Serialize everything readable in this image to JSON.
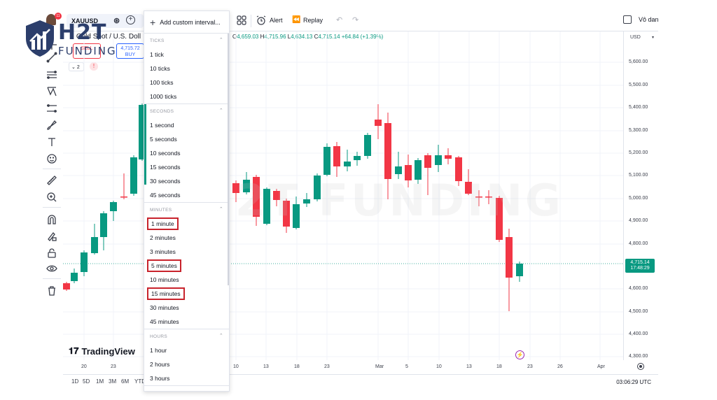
{
  "header": {
    "symbol": "XAUUSD",
    "notification_count": "11",
    "alert_label": "Alert",
    "replay_label": "Replay",
    "checkbox_label": "Vô dan"
  },
  "legend": {
    "title": "Gold Spot / U.S. Doll",
    "sell_label": "SELL",
    "sell_price": "",
    "buy_price": "4,715.72",
    "buy_label": "BUY",
    "indicators_count": "2",
    "warning": "!"
  },
  "ohlc": {
    "o_label": "O",
    "o": "4,659.03",
    "h_label": "H",
    "h": "4,715.96",
    "l_label": "L",
    "l": "4,634.13",
    "c_label": "C",
    "c": "4,715.14",
    "change": "+64.84 (+1.39%)"
  },
  "price_axis": {
    "currency": "USD",
    "labels": [
      "5,600.00",
      "5,500.00",
      "5,400.00",
      "5,300.00",
      "5,200.00",
      "5,100.00",
      "5,000.00",
      "4,900.00",
      "4,800.00",
      "4,600.00",
      "4,500.00",
      "4,400.00",
      "4,300.00"
    ],
    "current_price": "4,715.14",
    "countdown": "17:48:29"
  },
  "time_axis": {
    "left_labels": [
      "20",
      "23"
    ],
    "labels": [
      "10",
      "13",
      "18",
      "23",
      "Mar",
      "5",
      "10",
      "13",
      "18",
      "23",
      "26",
      "Apr"
    ]
  },
  "bottom_bar": {
    "ranges": [
      "1D",
      "5D",
      "1M",
      "3M",
      "6M",
      "YTD"
    ],
    "clock": "03:06:29 UTC"
  },
  "branding": {
    "tradingview": "TradingView",
    "logo_line1": "H2T",
    "logo_line2": "FUNDING",
    "watermark": "H2T FUNDING"
  },
  "interval_dropdown": {
    "add_custom": "Add custom interval...",
    "sections": [
      {
        "header": "TICKS",
        "items": [
          "1 tick",
          "10 ticks",
          "100 ticks",
          "1000 ticks"
        ]
      },
      {
        "header": "SECONDS",
        "items": [
          "1 second",
          "5 seconds",
          "10 seconds",
          "15 seconds",
          "30 seconds",
          "45 seconds"
        ]
      },
      {
        "header": "MINUTES",
        "items": [
          "1 minute",
          "2 minutes",
          "3 minutes",
          "5 minutes",
          "10 minutes",
          "15 minutes",
          "30 minutes",
          "45 minutes"
        ]
      },
      {
        "header": "HOURS",
        "items": [
          "1 hour",
          "2 hours",
          "3 hours"
        ]
      }
    ],
    "highlighted": [
      "1 minute",
      "5 minutes",
      "15 minutes"
    ]
  },
  "colors": {
    "up": "#089981",
    "down": "#f23645",
    "highlight": "#c8232c",
    "accent": "#2962ff"
  }
}
